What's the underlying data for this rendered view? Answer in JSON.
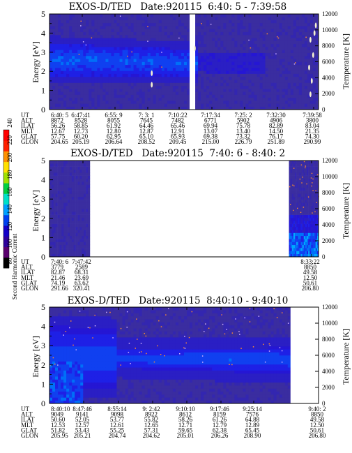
{
  "colorbar": {
    "label": "Second Harmonic Current",
    "ticks": [
      "80",
      "100",
      "120",
      "140",
      "160",
      "180",
      "200",
      "220",
      "240"
    ],
    "colors": [
      "#000000",
      "#5a006e",
      "#2e009c",
      "#1400c8",
      "#0040f0",
      "#00a0ff",
      "#00e0c8",
      "#00d040",
      "#a0e000",
      "#ffe000",
      "#ff9000",
      "#ff2000",
      "#ff0000"
    ]
  },
  "row_labels": [
    "UT",
    "ALT",
    "ILAT",
    "MLT",
    "GLAT",
    "GLON"
  ],
  "chart_data": [
    {
      "type": "heatmap",
      "title": "EXOS-D/TED   Date:920115  6:40: 5 - 7:39:58",
      "ylabel": "Energy [eV]",
      "ylabel_right": "Temperature [K]",
      "ylim": [
        0,
        5
      ],
      "yticks": [
        "0",
        "1",
        "2",
        "3",
        "4",
        "5"
      ],
      "ylim_right": [
        0,
        12000
      ],
      "yticks_right": [
        "0",
        "2000",
        "4000",
        "6000",
        "8000",
        "10000",
        "12000"
      ],
      "data_gaps": [
        [
          0.525,
          0.54
        ]
      ],
      "columns": [
        [
          "6:40: 5",
          "8872",
          "56.26",
          "12.67",
          "57.75",
          "204.65"
        ],
        [
          "6:47:41",
          "8528",
          "58.85",
          "12.73",
          "60.20",
          "205.19"
        ],
        [
          "6:55: 9",
          "8055",
          "61.92",
          "12.80",
          "62.95",
          "206.64"
        ],
        [
          "7: 3: 1",
          "7645",
          "64.46",
          "12.87",
          "65.10",
          "208.52"
        ],
        [
          "7:10:22",
          "7482",
          "65.46",
          "12.91",
          "65.93",
          "209.45"
        ],
        [
          "7:17:34",
          "6771",
          "69.94",
          "13.07",
          "69.38",
          "215.00"
        ],
        [
          "7:25: 2",
          "5902",
          "75.78",
          "13.40",
          "73.32",
          "226.79"
        ],
        [
          "7:32:30",
          "4906",
          "82.89",
          "14.50",
          "76.17",
          "251.89"
        ],
        [
          "7:39:58",
          "3800",
          "83.04",
          "21.35",
          "74.30",
          "290.99"
        ]
      ]
    },
    {
      "type": "heatmap",
      "title": "EXOS-D/TED   Date:920115  7:40: 6 - 8:40: 2",
      "ylabel": "Energy [eV]",
      "ylabel_right": "Temperature [K]",
      "ylim": [
        0,
        5
      ],
      "yticks": [
        "0",
        "1",
        "2",
        "3",
        "4",
        "5"
      ],
      "ylim_right": [
        0,
        12000
      ],
      "yticks_right": [
        "0",
        "2000",
        "4000",
        "6000",
        "8000",
        "10000",
        "12000"
      ],
      "data_gaps": [
        [
          0.16,
          0.885
        ]
      ],
      "columns": [
        [
          "7:40: 6",
          "3779",
          "82.87",
          "21.46",
          "74.19",
          "291.66"
        ],
        [
          "7:47:42",
          "2589",
          "68.31",
          "23.69",
          "63.62",
          "320.41"
        ],
        [
          "8:33:22",
          "8850",
          "49.58",
          "12.50",
          "50.61",
          "206.80"
        ]
      ]
    },
    {
      "type": "heatmap",
      "title": "EXOS-D/TED   Date:920115  8:40:10 - 9:40:10",
      "ylabel": "Energy [eV]",
      "ylabel_right": "Temperature [K]",
      "ylim": [
        0,
        5
      ],
      "yticks": [
        "0",
        "1",
        "2",
        "3",
        "4",
        "5"
      ],
      "ylim_right": [
        0,
        12000
      ],
      "yticks_right": [
        "0",
        "2000",
        "4000",
        "6000",
        "8000",
        "10000",
        "12000"
      ],
      "data_gaps": [
        [
          0.9,
          1.0
        ]
      ],
      "columns": [
        [
          "8:40:10",
          "9049",
          "50.60",
          "12.53",
          "51.82",
          "205.95"
        ],
        [
          "8:47:46",
          "9141",
          "52.05",
          "12.57",
          "53.43",
          "205.21"
        ],
        [
          "8:55:14",
          "9098",
          "53.77",
          "12.61",
          "55.25",
          "204.74"
        ],
        [
          "9: 2:42",
          "8922",
          "55.82",
          "12.65",
          "57.31",
          "204.62"
        ],
        [
          "9:10:10",
          "8612",
          "58.26",
          "12.71",
          "59.65",
          "205.01"
        ],
        [
          "9:17:46",
          "8159",
          "61.26",
          "12.79",
          "62.38",
          "206.26"
        ],
        [
          "9:25:14",
          "7576",
          "64.88",
          "12.89",
          "65.45",
          "208.90"
        ],
        [
          "9:40: 2",
          "8850",
          "49.58",
          "12.50",
          "50.61",
          "206.80"
        ]
      ]
    }
  ]
}
